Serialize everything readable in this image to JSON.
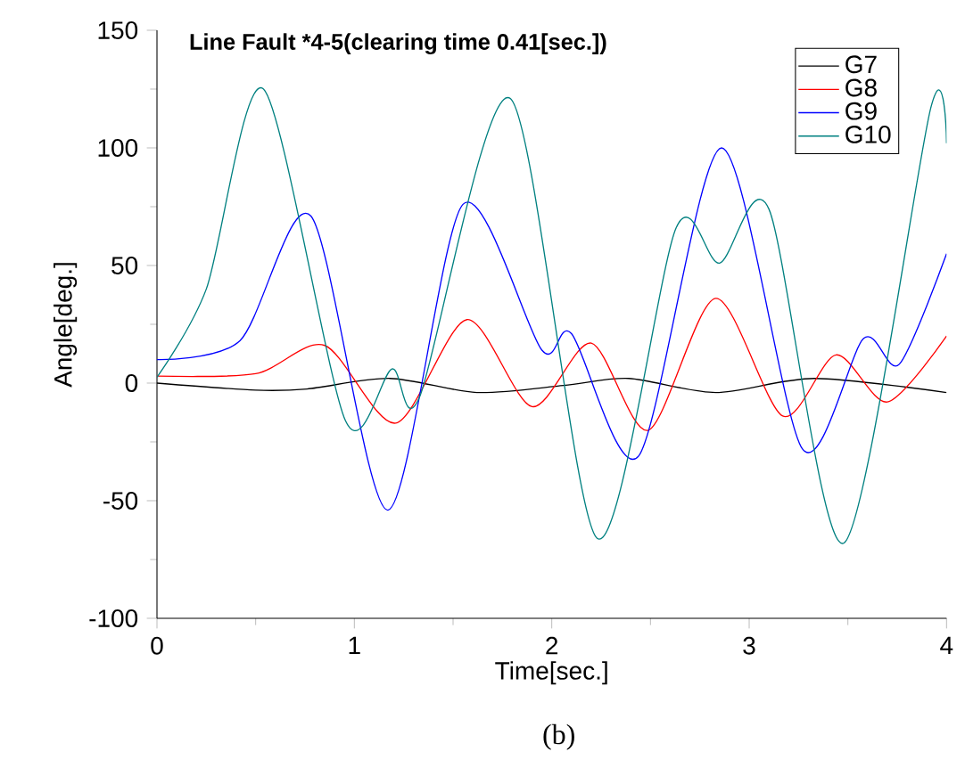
{
  "chart_data": {
    "type": "line",
    "title": "Line Fault *4-5(clearing time 0.41[sec.])",
    "xlabel": "Time[sec.]",
    "ylabel": "Angle[deg.]",
    "annotations": [
      "(b)"
    ],
    "xlim": [
      0,
      4
    ],
    "ylim": [
      -100,
      150
    ],
    "xticks": [
      0,
      1,
      2,
      3,
      4
    ],
    "yticks": [
      -100,
      -50,
      0,
      50,
      100,
      150
    ],
    "legend": "top right",
    "marker": "none",
    "line_style": "solid",
    "series": [
      {
        "name": "G7",
        "color": "#000000",
        "x": [
          0,
          0.5,
          0.76,
          1.18,
          1.62,
          2.06,
          2.39,
          2.83,
          3.33,
          4.0
        ],
        "values": [
          0,
          -3,
          -2.5,
          2,
          -4,
          -1,
          2,
          -4,
          2,
          -4
        ]
      },
      {
        "name": "G8",
        "color": "#ff0000",
        "x": [
          0,
          0.5,
          0.85,
          1.21,
          1.57,
          1.9,
          2.2,
          2.49,
          2.83,
          3.17,
          3.44,
          3.7,
          4.0
        ],
        "values": [
          3,
          4,
          16,
          -17,
          27,
          -10,
          17,
          -20,
          36,
          -14,
          12,
          -8,
          20
        ]
      },
      {
        "name": "G9",
        "color": "#0000ff",
        "x": [
          0,
          0.42,
          0.78,
          1.17,
          1.55,
          1.95,
          2.1,
          2.44,
          2.86,
          3.27,
          3.58,
          3.76,
          4.0
        ],
        "values": [
          10,
          18,
          71,
          -54,
          76,
          14,
          21,
          -31,
          100,
          -28,
          19,
          8,
          55
        ]
      },
      {
        "name": "G10",
        "color": "#008080",
        "x": [
          0,
          0.25,
          0.54,
          0.955,
          1.19,
          1.33,
          1.79,
          2.23,
          2.63,
          2.85,
          3.1,
          3.48,
          3.92,
          4.0
        ],
        "values": [
          2.5,
          40,
          125,
          -16,
          6,
          -6,
          121,
          -66,
          66,
          51,
          74,
          -68,
          117,
          102
        ]
      }
    ]
  }
}
